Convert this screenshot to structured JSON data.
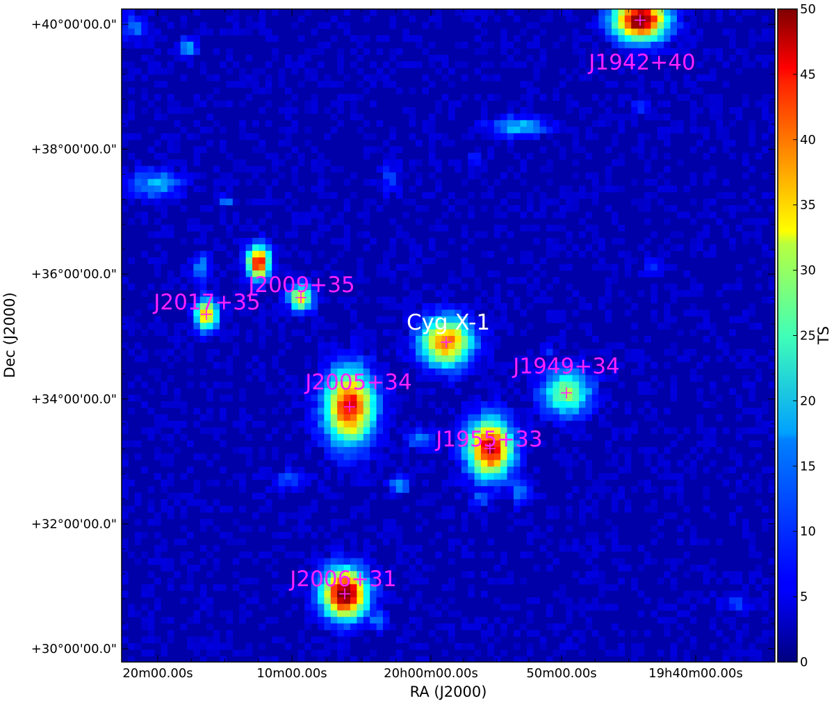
{
  "chart_data": {
    "type": "heatmap",
    "title": "",
    "xlabel": "RA (J2000)",
    "ylabel": "Dec (J2000)",
    "x_tick_labels": [
      "20m00.00s",
      "10m00.00s",
      "20h00m00.00s",
      "50m00.00s",
      "19h40m00.00s"
    ],
    "y_tick_labels": [
      "+40°00'00.0\"",
      "+38°00'00.0\"",
      "+36°00'00.0\"",
      "+34°00'00.0\"",
      "+32°00'00.0\"",
      "+30°00'00.0\""
    ],
    "y_tick_values_deg": [
      40,
      38,
      36,
      34,
      32,
      30
    ],
    "colorbar": {
      "label": "TS",
      "range": [
        0,
        50
      ],
      "ticks": [
        0,
        5,
        10,
        15,
        20,
        25,
        30,
        35,
        40,
        45,
        50
      ],
      "colormap": "jet"
    },
    "background_ts": 2,
    "sources": [
      {
        "name": "J1942+40",
        "ts": 50,
        "label_color": "#ff22ff"
      },
      {
        "name": "J2009+35",
        "ts": 30,
        "label_color": "#ff22ff"
      },
      {
        "name": "J2017+35",
        "ts": 34,
        "label_color": "#ff22ff"
      },
      {
        "name": "Cyg X-1",
        "ts": 36,
        "label_color": "#ffffff"
      },
      {
        "name": "J1949+34",
        "ts": 24,
        "label_color": "#ff22ff"
      },
      {
        "name": "J2005+34",
        "ts": 42,
        "label_color": "#ff22ff"
      },
      {
        "name": "J1955+33",
        "ts": 44,
        "label_color": "#ff22ff"
      },
      {
        "name": "J2006+31",
        "ts": 50,
        "label_color": "#ff22ff"
      }
    ]
  }
}
